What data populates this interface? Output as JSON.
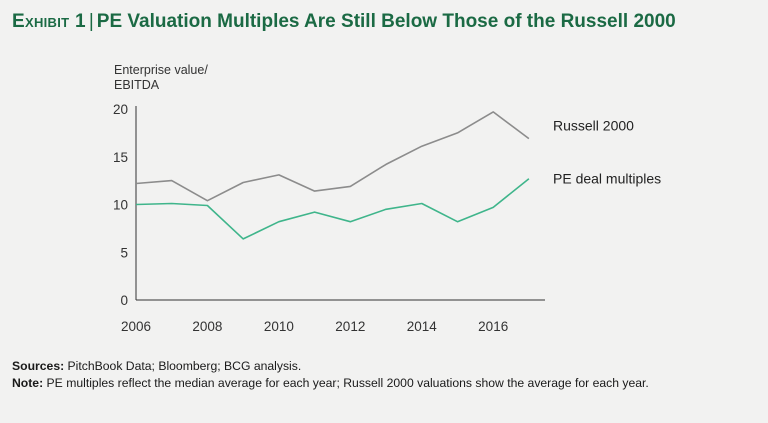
{
  "title": {
    "exhibit": "Exhibit 1",
    "separator": "|",
    "text": "PE Valuation Multiples Are Still Below Those of the Russell 2000"
  },
  "colors": {
    "title": "#1b6a44",
    "russell": "#8c8c8c",
    "pe": "#3fb58b",
    "axis": "#333333",
    "background": "#f2f2f1"
  },
  "chart_data": {
    "type": "line",
    "ylabel_lines": [
      "Enterprise value/",
      "EBITDA"
    ],
    "xlabel": "",
    "ylim": [
      0,
      20
    ],
    "yticks": [
      0,
      5,
      10,
      15,
      20
    ],
    "xlim": [
      2006,
      2017.45
    ],
    "xticks": [
      2006,
      2008,
      2010,
      2012,
      2014,
      2016
    ],
    "x": [
      2006,
      2007,
      2008,
      2009,
      2010,
      2011,
      2012,
      2013,
      2014,
      2015,
      2016,
      2017
    ],
    "series": [
      {
        "name": "Russell 2000",
        "color": "#8c8c8c",
        "values": [
          12.2,
          12.5,
          10.4,
          12.3,
          13.1,
          11.4,
          11.9,
          14.2,
          16.1,
          17.5,
          19.7,
          16.9
        ]
      },
      {
        "name": "PE deal multiples",
        "color": "#3fb58b",
        "values": [
          10.0,
          10.1,
          9.9,
          6.4,
          8.2,
          9.2,
          8.2,
          9.5,
          10.1,
          8.2,
          9.7,
          12.7
        ]
      }
    ]
  },
  "footnotes": {
    "sources_label": "Sources:",
    "sources_text": "PitchBook Data; Bloomberg; BCG analysis.",
    "note_label": "Note:",
    "note_text": "PE multiples reflect the median average for each year; Russell 2000 valuations show the average for each year."
  }
}
